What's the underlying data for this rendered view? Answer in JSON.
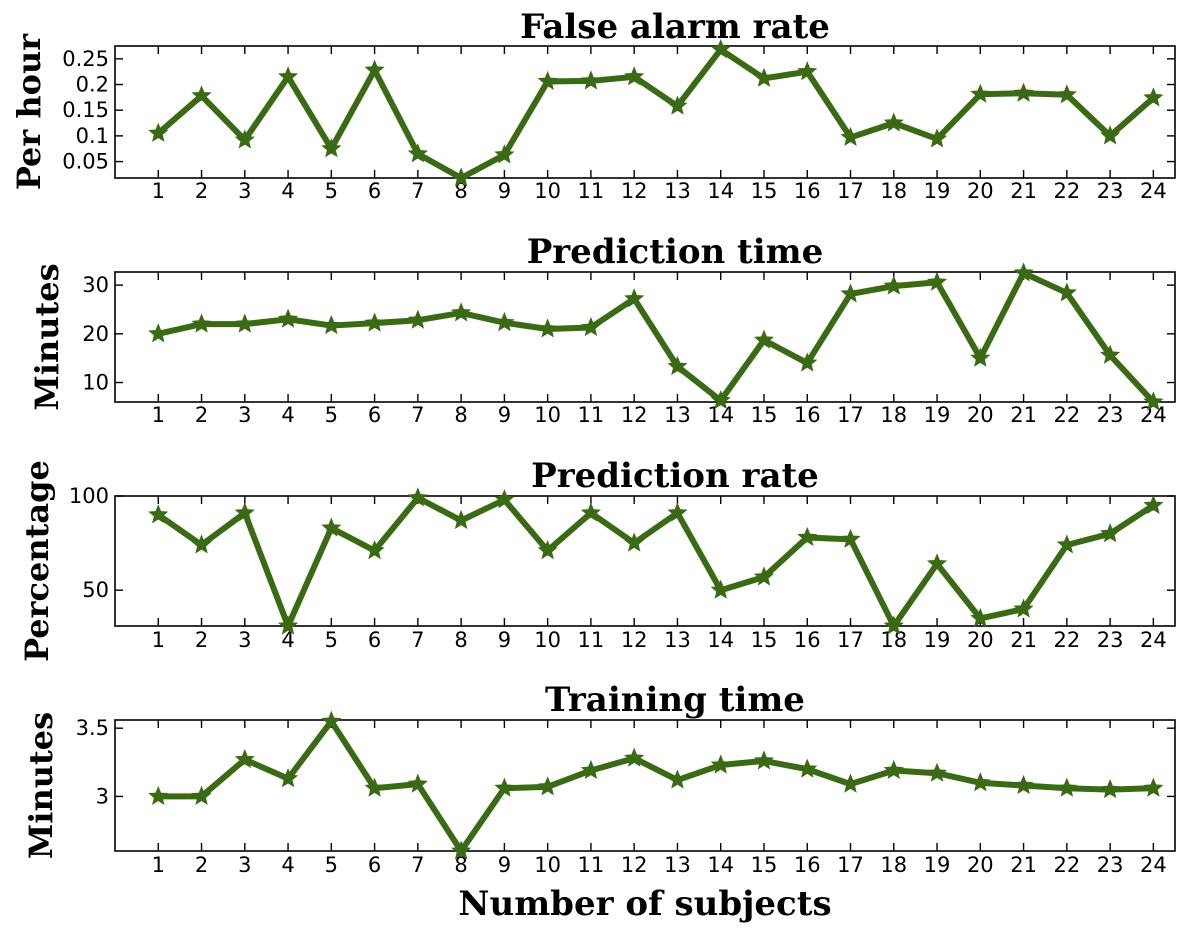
{
  "xlabel": "Number of subjects",
  "colors": {
    "series": "#3a6b14",
    "marker": "#3a6b14"
  },
  "chart_data": [
    {
      "type": "line",
      "title": "False alarm rate",
      "ylabel": "Per hour",
      "x": [
        1,
        2,
        3,
        4,
        5,
        6,
        7,
        8,
        9,
        10,
        11,
        12,
        13,
        14,
        15,
        16,
        17,
        18,
        19,
        20,
        21,
        22,
        23,
        24
      ],
      "values": [
        0.105,
        0.178,
        0.092,
        0.215,
        0.075,
        0.228,
        0.065,
        0.018,
        0.063,
        0.206,
        0.207,
        0.215,
        0.158,
        0.268,
        0.212,
        0.225,
        0.097,
        0.125,
        0.094,
        0.181,
        0.183,
        0.18,
        0.1,
        0.174
      ],
      "ylim": [
        0.018,
        0.275
      ],
      "yticks": [
        0.05,
        0.1,
        0.15,
        0.2,
        0.25
      ],
      "yticklabels": [
        "0.05",
        "0.1",
        "0.15",
        "0.2",
        "0.25"
      ],
      "marker": "star",
      "grid": false
    },
    {
      "type": "line",
      "title": "Prediction time",
      "ylabel": "Minutes",
      "x": [
        1,
        2,
        3,
        4,
        5,
        6,
        7,
        8,
        9,
        10,
        11,
        12,
        13,
        14,
        15,
        16,
        17,
        18,
        19,
        20,
        21,
        22,
        23,
        24
      ],
      "values": [
        20,
        22,
        22,
        23,
        21.7,
        22.2,
        22.8,
        24.3,
        22.3,
        21,
        21.3,
        27.2,
        13.3,
        6.3,
        18.7,
        14,
        28.2,
        29.8,
        30.6,
        15,
        32.5,
        28.4,
        15.6,
        6
      ],
      "ylim": [
        6,
        32.7
      ],
      "yticks": [
        10,
        20,
        30
      ],
      "yticklabels": [
        "10",
        "20",
        "30"
      ],
      "marker": "star",
      "grid": false
    },
    {
      "type": "line",
      "title": "Prediction rate",
      "ylabel": "Percentage",
      "x": [
        1,
        2,
        3,
        4,
        5,
        6,
        7,
        8,
        9,
        10,
        11,
        12,
        13,
        14,
        15,
        16,
        17,
        18,
        19,
        20,
        21,
        22,
        23,
        24
      ],
      "values": [
        90,
        74,
        91,
        31,
        83,
        71,
        99,
        87,
        98,
        71,
        91,
        75,
        91,
        50,
        57,
        78,
        77,
        31,
        64,
        35,
        40,
        74,
        80,
        95
      ],
      "ylim": [
        31,
        100
      ],
      "yticks": [
        50,
        100
      ],
      "yticklabels": [
        "50",
        "100"
      ],
      "marker": "star",
      "grid": false
    },
    {
      "type": "line",
      "title": "Training time",
      "ylabel": "Minutes",
      "x": [
        1,
        2,
        3,
        4,
        5,
        6,
        7,
        8,
        9,
        10,
        11,
        12,
        13,
        14,
        15,
        16,
        17,
        18,
        19,
        20,
        21,
        22,
        23,
        24
      ],
      "values": [
        3.0,
        3.0,
        3.27,
        3.13,
        3.55,
        3.06,
        3.09,
        2.6,
        3.06,
        3.07,
        3.19,
        3.28,
        3.12,
        3.23,
        3.26,
        3.2,
        3.09,
        3.19,
        3.17,
        3.1,
        3.08,
        3.06,
        3.05,
        3.06
      ],
      "ylim": [
        2.6,
        3.56
      ],
      "yticks": [
        3,
        3.5
      ],
      "yticklabels": [
        "3",
        "3.5"
      ],
      "marker": "star",
      "grid": false
    }
  ]
}
